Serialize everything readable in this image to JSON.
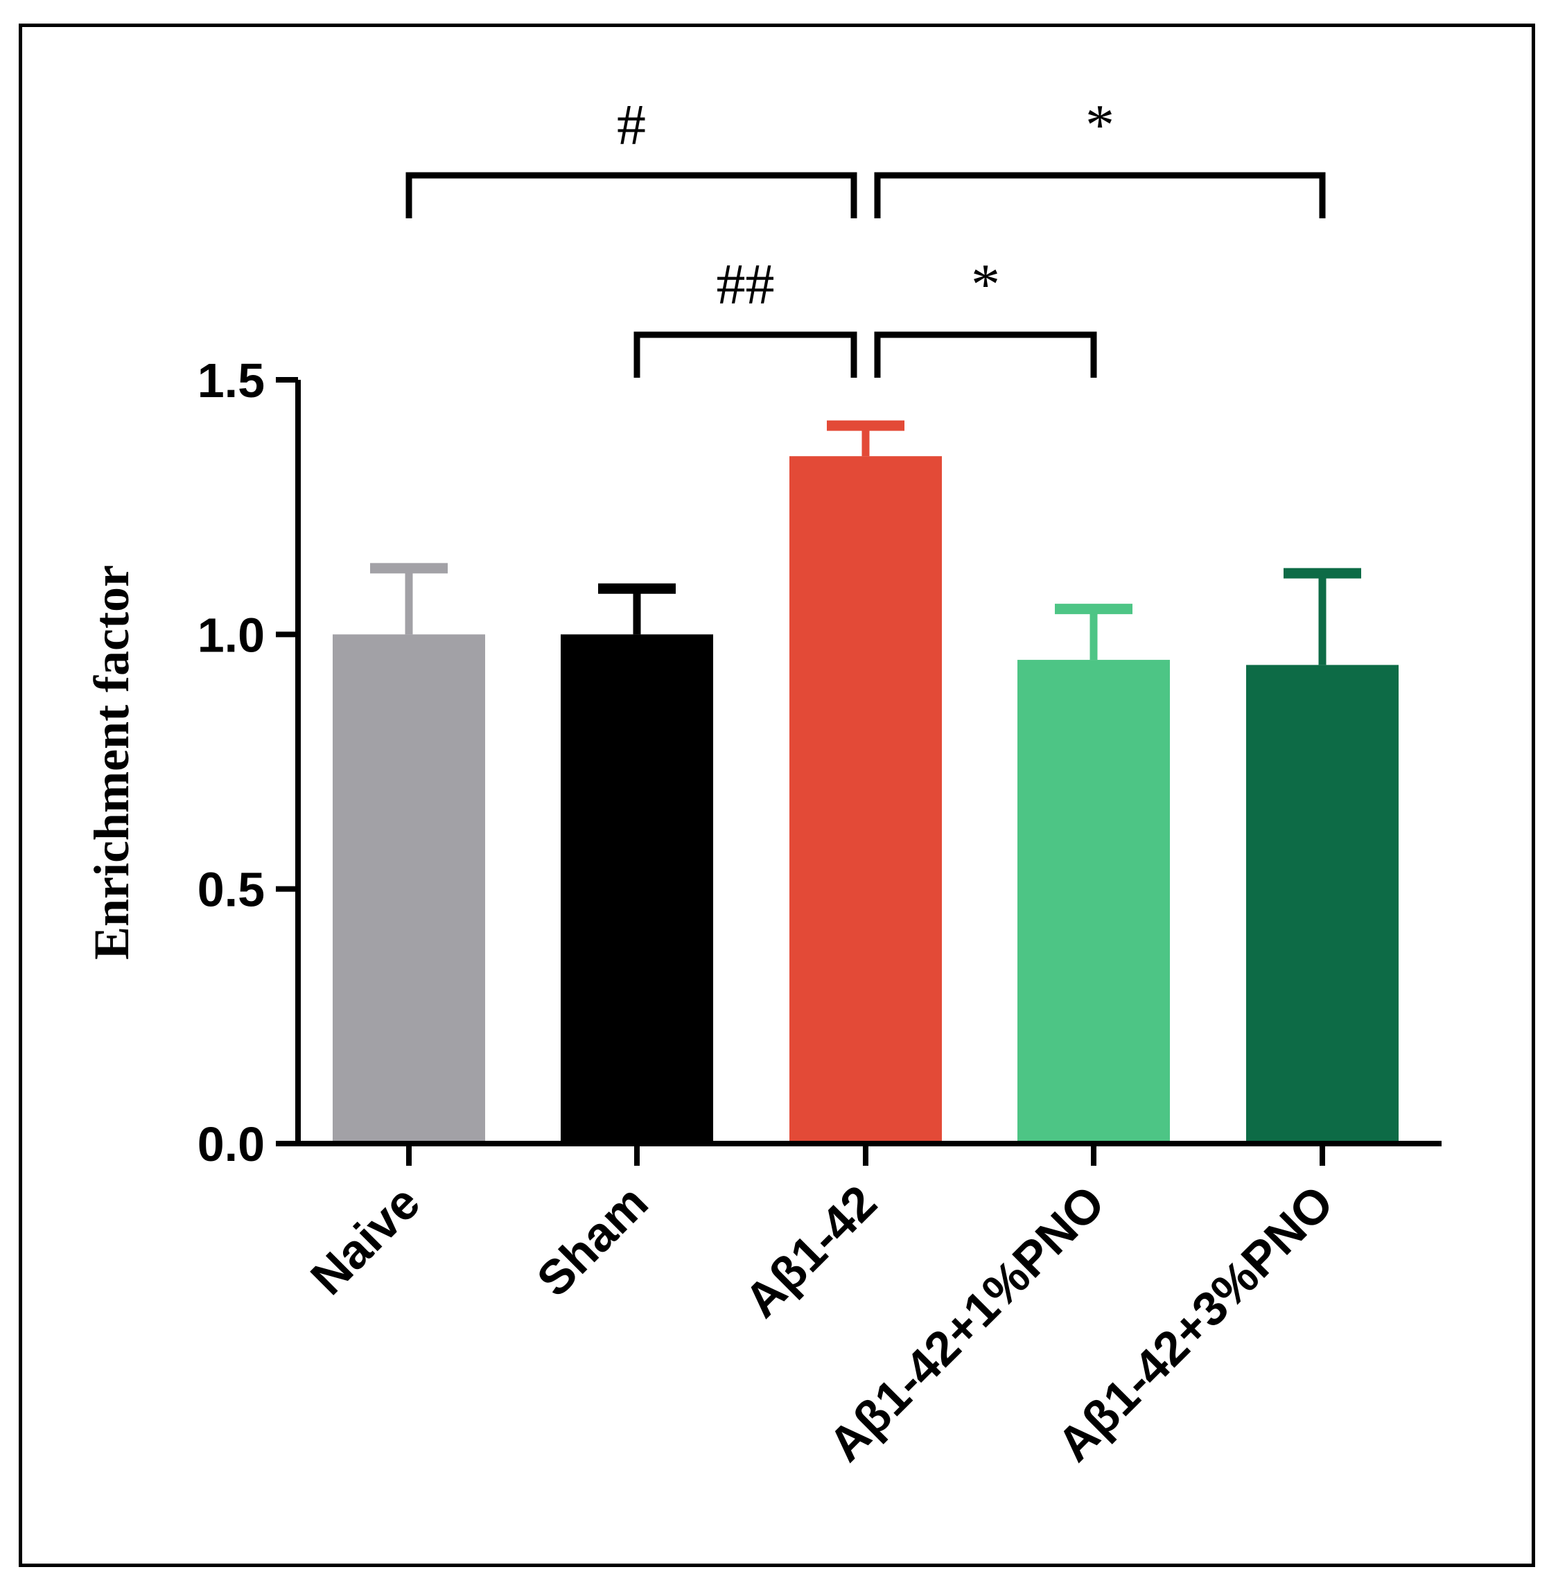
{
  "chart_data": {
    "type": "bar",
    "title": "",
    "xlabel": "",
    "ylabel": "Enrichment factor",
    "ylim": [
      0,
      1.5
    ],
    "yticks": [
      "0.0",
      "0.5",
      "1.0",
      "1.5"
    ],
    "grid": false,
    "categories": [
      "Naive",
      "Sham",
      "Aβ1-42",
      "Aβ1-42+1%PNO",
      "Aβ1-42+3%PNO"
    ],
    "values": [
      1.0,
      1.0,
      1.35,
      0.95,
      0.94
    ],
    "errors": [
      0.13,
      0.09,
      0.06,
      0.1,
      0.18
    ],
    "colors": [
      "#a2a1a6",
      "#000000",
      "#e34a37",
      "#4dc585",
      "#0d6b46"
    ],
    "significance": [
      {
        "from": 0,
        "to": 2,
        "label": "#",
        "level": 2
      },
      {
        "from": 2,
        "to": 4,
        "label": "*",
        "level": 2
      },
      {
        "from": 1,
        "to": 2,
        "label": "##",
        "level": 1
      },
      {
        "from": 2,
        "to": 3,
        "label": "*",
        "level": 1
      }
    ]
  }
}
